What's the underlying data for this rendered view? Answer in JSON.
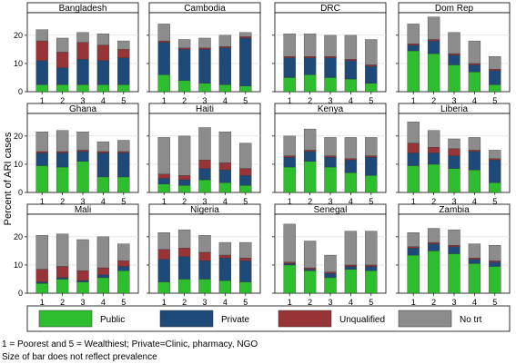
{
  "chart_data": {
    "type": "bar",
    "stacked": true,
    "ylabel": "Percent of ARI cases",
    "yticks": [
      0,
      10,
      20
    ],
    "ylim": [
      0,
      28
    ],
    "categories": [
      "1",
      "2",
      "3",
      "4",
      "5"
    ],
    "series_order": [
      "Public",
      "Private",
      "Unqualified",
      "No trt"
    ],
    "colors": {
      "Public": "#2ebd2e",
      "Private": "#1e4a7a",
      "Unqualified": "#973437",
      "No trt": "#8c8c8c"
    },
    "panels": [
      {
        "title": "Bangladesh",
        "public": [
          2.5,
          2.5,
          2.5,
          2.5,
          2.5
        ],
        "private": [
          8.5,
          6,
          9,
          8.5,
          9.5
        ],
        "unqualified": [
          7,
          5.5,
          6,
          5.5,
          3
        ],
        "no_trt": [
          4,
          5,
          3.5,
          4,
          3
        ]
      },
      {
        "title": "Cambodia",
        "public": [
          6,
          4,
          3,
          2.5,
          2
        ],
        "private": [
          11.5,
          11,
          12,
          13,
          17
        ],
        "unqualified": [
          0.5,
          0.5,
          0.5,
          0.5,
          0.5
        ],
        "no_trt": [
          6,
          3,
          3.5,
          4,
          1.5
        ]
      },
      {
        "title": "DRC",
        "public": [
          5,
          6,
          5,
          4.5,
          3
        ],
        "private": [
          7,
          6,
          7,
          6.5,
          6
        ],
        "unqualified": [
          0.5,
          0.5,
          0.5,
          0.5,
          0.5
        ],
        "no_trt": [
          8,
          8,
          7.5,
          8.5,
          9
        ]
      },
      {
        "title": "Dom Rep",
        "public": [
          14.5,
          13.5,
          9.5,
          7,
          2.5
        ],
        "private": [
          2,
          4.5,
          3.5,
          2.5,
          5
        ],
        "unqualified": [
          0.5,
          0.5,
          0.5,
          0.5,
          0.5
        ],
        "no_trt": [
          7,
          8,
          7.5,
          8,
          4.5
        ]
      },
      {
        "title": "Ghana",
        "public": [
          9.5,
          9,
          11,
          5.5,
          5.5
        ],
        "private": [
          4.5,
          5,
          3.5,
          8.5,
          8.5
        ],
        "unqualified": [
          0.5,
          0.5,
          0.5,
          0.5,
          0.5
        ],
        "no_trt": [
          7,
          7.5,
          6.5,
          3.5,
          4
        ]
      },
      {
        "title": "Haiti",
        "public": [
          3,
          2.5,
          4.5,
          3.5,
          2.5
        ],
        "private": [
          2,
          2,
          4,
          4.5,
          3.5
        ],
        "unqualified": [
          1.5,
          1.5,
          3,
          2.5,
          2.5
        ],
        "no_trt": [
          13,
          14,
          11.5,
          11,
          9
        ]
      },
      {
        "title": "Kenya",
        "public": [
          9,
          11,
          9,
          7,
          6
        ],
        "private": [
          3.5,
          3.5,
          3.5,
          4.5,
          6.5
        ],
        "unqualified": [
          0.5,
          0.5,
          0.5,
          0.5,
          0.5
        ],
        "no_trt": [
          7,
          7.5,
          6.5,
          7.5,
          6.5
        ]
      },
      {
        "title": "Liberia",
        "public": [
          9.5,
          10,
          8.5,
          8,
          3.5
        ],
        "private": [
          4.5,
          4,
          4.5,
          6.5,
          8
        ],
        "unqualified": [
          3.5,
          2,
          2.5,
          0.5,
          0.5
        ],
        "no_trt": [
          7.5,
          6,
          3.5,
          4.5,
          3
        ]
      },
      {
        "title": "Mali",
        "public": [
          3.5,
          5,
          4,
          5.5,
          8
        ],
        "private": [
          0.5,
          0.5,
          0.5,
          1,
          1.5
        ],
        "unqualified": [
          4.5,
          4,
          3.5,
          2.5,
          2
        ],
        "no_trt": [
          12,
          11.5,
          11,
          11,
          6
        ]
      },
      {
        "title": "Nigeria",
        "public": [
          4,
          5,
          5,
          4.5,
          4
        ],
        "private": [
          8,
          8,
          6.5,
          8,
          7.5
        ],
        "unqualified": [
          3.5,
          3,
          3,
          1,
          1
        ],
        "no_trt": [
          6,
          6.5,
          6,
          4.5,
          5.5
        ]
      },
      {
        "title": "Senegal",
        "public": [
          10,
          8,
          5.5,
          8.5,
          8
        ],
        "private": [
          0.5,
          0.5,
          1.5,
          1,
          1.5
        ],
        "unqualified": [
          0.5,
          0.5,
          0.5,
          0.5,
          0.5
        ],
        "no_trt": [
          13.5,
          9.5,
          6,
          12,
          12
        ]
      },
      {
        "title": "Zambia",
        "public": [
          13.5,
          15,
          14,
          10.5,
          9.5
        ],
        "private": [
          2.5,
          2.5,
          2.5,
          1.5,
          1.5
        ],
        "unqualified": [
          0.5,
          0.5,
          0.5,
          0.5,
          0.5
        ],
        "no_trt": [
          5,
          5,
          5.5,
          5,
          5.5
        ]
      }
    ],
    "legend": [
      "Public",
      "Private",
      "Unqualified",
      "No trt"
    ]
  },
  "footnote": {
    "line1": "1 = Poorest and 5 = Wealthiest; Private=Clinic, pharmacy, NGO",
    "line2": "Size of bar does not reflect prevalence"
  }
}
